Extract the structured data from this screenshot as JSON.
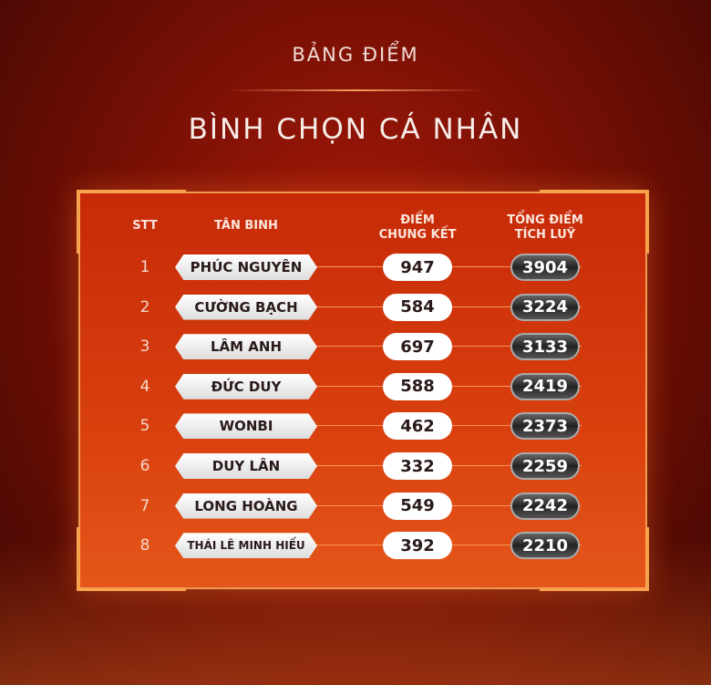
{
  "header": {
    "subtitle": "BẢNG ĐIỂM",
    "title": "BÌNH CHỌN CÁ NHÂN"
  },
  "columns": {
    "stt": "STT",
    "name": "TÂN BINH",
    "final_l1": "ĐIỂM",
    "final_l2": "CHUNG KẾT",
    "total_l1": "TỔNG ĐIỂM",
    "total_l2": "TÍCH LUỸ"
  },
  "rows": [
    {
      "stt": "1",
      "name": "PHÚC NGUYÊN",
      "final": "947",
      "total": "3904"
    },
    {
      "stt": "2",
      "name": "CƯỜNG BẠCH",
      "final": "584",
      "total": "3224"
    },
    {
      "stt": "3",
      "name": "LÂM ANH",
      "final": "697",
      "total": "3133"
    },
    {
      "stt": "4",
      "name": "ĐỨC DUY",
      "final": "588",
      "total": "2419"
    },
    {
      "stt": "5",
      "name": "WONBI",
      "final": "462",
      "total": "2373"
    },
    {
      "stt": "6",
      "name": "DUY LÂN",
      "final": "332",
      "total": "2259"
    },
    {
      "stt": "7",
      "name": "LONG HOÀNG",
      "final": "549",
      "total": "2242"
    },
    {
      "stt": "8",
      "name": "THÁI LÊ MINH HIẾU",
      "final": "392",
      "total": "2210"
    }
  ]
}
